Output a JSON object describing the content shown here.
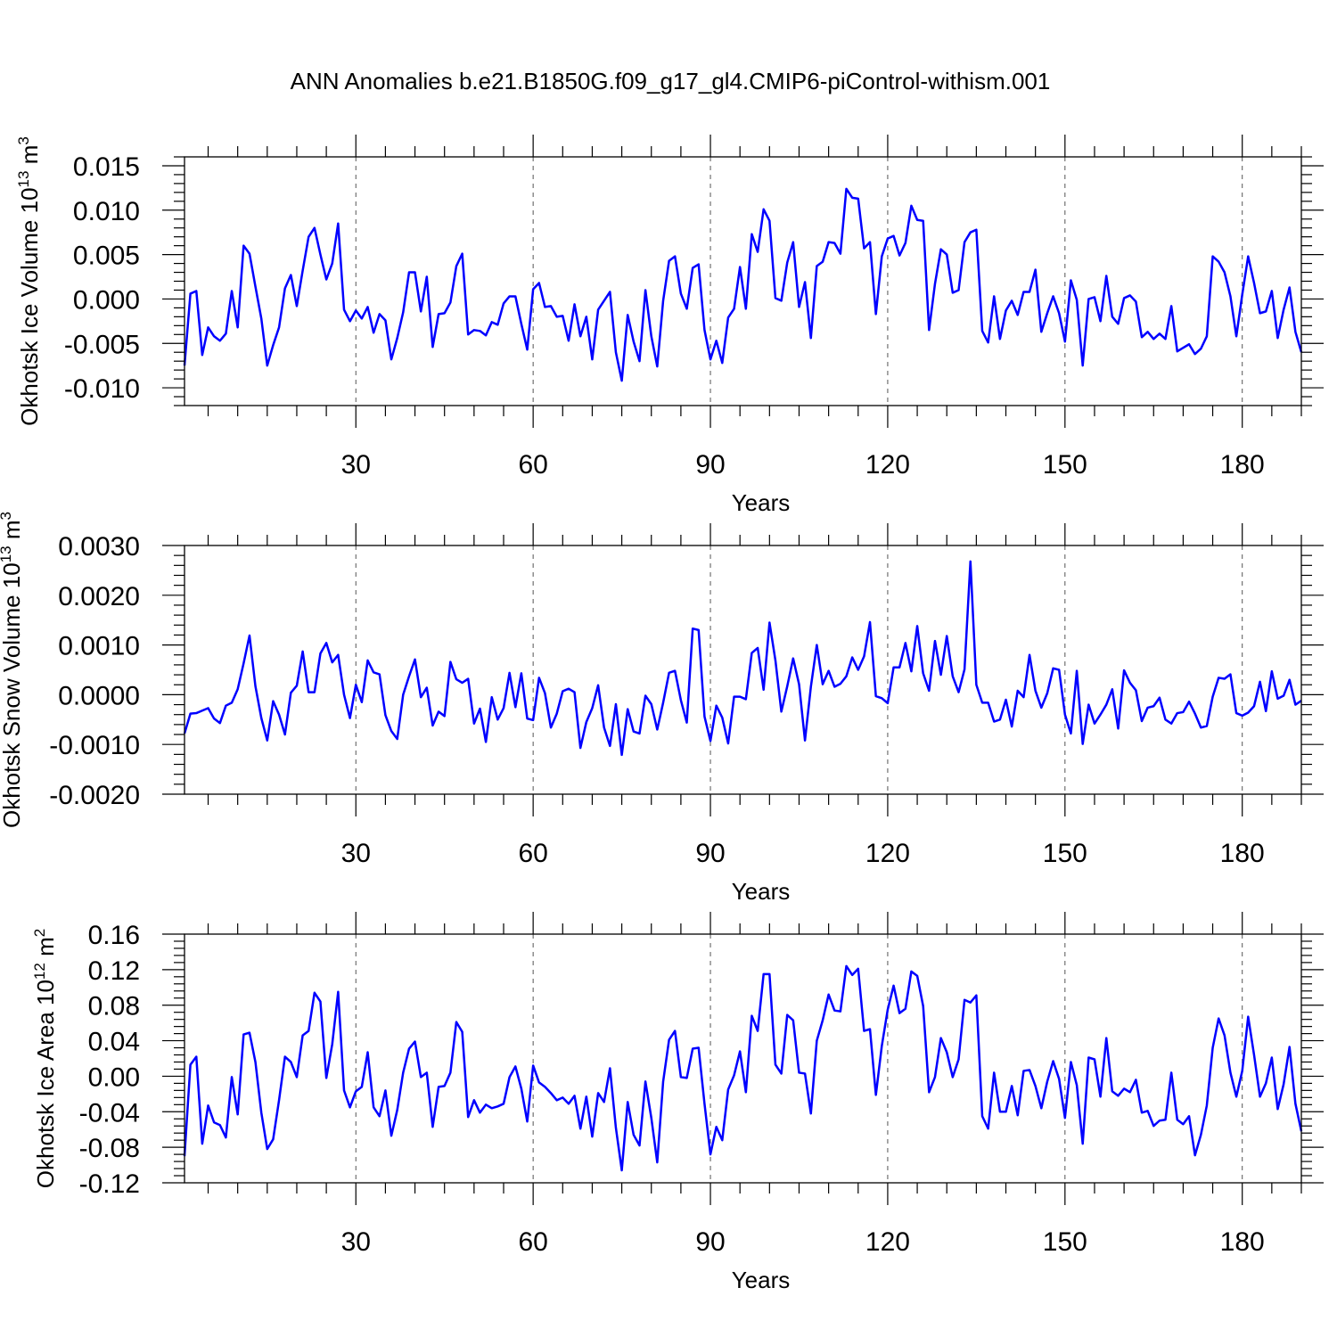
{
  "title": "ANN Anomalies b.e21.B1850G.f09_g17_gl4.CMIP6-piControl-withism.001",
  "chart_data": [
    {
      "type": "line",
      "id": "ice-volume",
      "ylabel_main": "Okhotsk Ice Volume 10",
      "ylabel_exp": "13",
      "ylabel_unit": " m",
      "ylabel_unit_exp": "3",
      "xlabel": "Years",
      "xlim": [
        1,
        190
      ],
      "ylim": [
        -0.012,
        0.016
      ],
      "xticks": [
        30,
        60,
        90,
        120,
        150,
        180
      ],
      "xtick_labels": [
        "30",
        "60",
        "90",
        "120",
        "150",
        "180"
      ],
      "yticks": [
        0.015,
        0.01,
        0.005,
        0.0,
        -0.005,
        -0.01
      ],
      "ytick_labels": [
        "0.015",
        "0.010",
        "0.005",
        "0.000",
        "-0.005",
        "-0.010"
      ],
      "line_color": "#0000ff",
      "series": [
        {
          "name": "Okhotsk Ice Volume",
          "values": [
            -0.0075,
            0.0006,
            0.0009,
            -0.0063,
            -0.0032,
            -0.0042,
            -0.0047,
            -0.0039,
            0.0009,
            -0.0032,
            0.006,
            0.0051,
            0.0014,
            -0.0022,
            -0.0075,
            -0.0052,
            -0.0032,
            0.0012,
            0.0027,
            -0.0008,
            0.0032,
            0.007,
            0.008,
            0.005,
            0.0022,
            0.004,
            0.0085,
            -0.0012,
            -0.0025,
            -0.0013,
            -0.0022,
            -0.0009,
            -0.0038,
            -0.0017,
            -0.0024,
            -0.0068,
            -0.0044,
            -0.0015,
            0.003,
            0.003,
            -0.0014,
            0.0025,
            -0.0054,
            -0.0017,
            -0.0016,
            -0.0004,
            0.0037,
            0.0051,
            -0.004,
            -0.0035,
            -0.0036,
            -0.0041,
            -0.0026,
            -0.0029,
            -0.0005,
            0.0003,
            0.0003,
            -0.0028,
            -0.0057,
            0.0011,
            0.0018,
            -0.0009,
            -0.0008,
            -0.002,
            -0.0019,
            -0.0047,
            -0.0006,
            -0.0042,
            -0.002,
            -0.0068,
            -0.0012,
            -0.0002,
            0.0008,
            -0.006,
            -0.0092,
            -0.0018,
            -0.0048,
            -0.007,
            0.001,
            -0.0042,
            -0.0076,
            -0.0002,
            0.0043,
            0.0048,
            0.0006,
            -0.0011,
            0.0035,
            0.0039,
            -0.0035,
            -0.0068,
            -0.0047,
            -0.0072,
            -0.0021,
            -0.0011,
            0.0036,
            -0.0011,
            0.0073,
            0.0053,
            0.0101,
            0.0088,
            0.0001,
            -0.0002,
            0.0041,
            0.0064,
            -0.0009,
            0.0019,
            -0.0044,
            0.0037,
            0.0042,
            0.0064,
            0.0063,
            0.0051,
            0.0124,
            0.0114,
            0.0113,
            0.0057,
            0.0064,
            -0.0017,
            0.0048,
            0.0068,
            0.0071,
            0.0049,
            0.0063,
            0.0105,
            0.0089,
            0.0088,
            -0.0035,
            0.0017,
            0.0056,
            0.005,
            0.0007,
            0.001,
            0.0064,
            0.0075,
            0.0078,
            -0.0036,
            -0.0049,
            0.0003,
            -0.0045,
            -0.0013,
            -0.0002,
            -0.0018,
            0.0008,
            0.0008,
            0.0033,
            -0.0037,
            -0.0016,
            0.0003,
            -0.0016,
            -0.0048,
            0.0021,
            -0.0001,
            -0.0075,
            0.0,
            0.0002,
            -0.0025,
            0.0026,
            -0.002,
            -0.0028,
            0.0001,
            0.0004,
            -0.0003,
            -0.0043,
            -0.0037,
            -0.0045,
            -0.0039,
            -0.0045,
            -0.0008,
            -0.0059,
            -0.0055,
            -0.0051,
            -0.0062,
            -0.0056,
            -0.0042,
            0.0048,
            0.0042,
            0.003,
            0.0003,
            -0.0042,
            0.0005,
            0.0048,
            0.0018,
            -0.0016,
            -0.0014,
            0.0009,
            -0.0044,
            -0.0012,
            0.0013,
            -0.0037,
            -0.006
          ]
        }
      ]
    },
    {
      "type": "line",
      "id": "snow-volume",
      "ylabel_main": "Okhotsk Snow Volume 10",
      "ylabel_exp": "13",
      "ylabel_unit": " m",
      "ylabel_unit_exp": "3",
      "xlabel": "Years",
      "xlim": [
        1,
        190
      ],
      "ylim": [
        -0.002,
        0.003
      ],
      "xticks": [
        30,
        60,
        90,
        120,
        150,
        180
      ],
      "xtick_labels": [
        "30",
        "60",
        "90",
        "120",
        "150",
        "180"
      ],
      "yticks": [
        0.003,
        0.002,
        0.001,
        0.0,
        -0.001,
        -0.002
      ],
      "ytick_labels": [
        "0.0030",
        "0.0020",
        "0.0010",
        "0.0000",
        "-0.0010",
        "-0.0020"
      ],
      "line_color": "#0000ff",
      "series": [
        {
          "name": "Okhotsk Snow Volume",
          "values": [
            -0.00078,
            -0.00038,
            -0.00037,
            -0.00032,
            -0.00027,
            -0.00048,
            -0.00057,
            -0.00022,
            -0.00016,
            0.00011,
            0.00063,
            0.00119,
            0.00017,
            -0.00047,
            -0.00092,
            -0.00013,
            -0.0004,
            -0.0008,
            4e-05,
            0.00018,
            0.00087,
            5e-05,
            5e-05,
            0.00083,
            0.00104,
            0.00065,
            0.0008,
            0.0,
            -0.00047,
            0.0002,
            -0.00015,
            0.00069,
            0.00045,
            0.00041,
            -0.00041,
            -0.00073,
            -0.00089,
            0.0,
            0.00037,
            0.00071,
            -5e-05,
            0.00014,
            -0.00062,
            -0.00034,
            -0.00043,
            0.00066,
            0.00031,
            0.00024,
            0.00032,
            -0.00058,
            -0.00028,
            -0.00095,
            -5e-05,
            -0.0005,
            -0.00027,
            0.00044,
            -0.00025,
            0.00043,
            -0.00048,
            -0.00051,
            0.00034,
            3e-05,
            -0.00066,
            -0.00038,
            7e-05,
            0.00012,
            5e-05,
            -0.00107,
            -0.00055,
            -0.00027,
            0.00019,
            -0.00066,
            -0.00103,
            -0.00019,
            -0.00121,
            -0.00029,
            -0.00074,
            -0.00078,
            -2e-05,
            -0.00019,
            -0.0007,
            -0.00016,
            0.00044,
            0.00048,
            -0.00011,
            -0.00056,
            0.00133,
            0.0013,
            -0.00044,
            -0.00093,
            -0.00022,
            -0.00046,
            -0.00098,
            -4e-05,
            -4e-05,
            -9e-05,
            0.00084,
            0.00094,
            0.0001,
            0.00145,
            0.00069,
            -0.00034,
            0.00017,
            0.00073,
            0.00021,
            -0.00092,
            0.00016,
            0.001,
            0.00021,
            0.00048,
            0.00016,
            0.00022,
            0.00037,
            0.00075,
            0.0005,
            0.00077,
            0.00146,
            -3e-05,
            -7e-05,
            -0.00017,
            0.00055,
            0.00055,
            0.00104,
            0.00047,
            0.00138,
            0.00043,
            8e-05,
            0.00108,
            0.0004,
            0.00118,
            0.00037,
            5e-05,
            0.00051,
            0.00268,
            0.0002,
            -0.00016,
            -0.00016,
            -0.00054,
            -0.0005,
            -0.0001,
            -0.00064,
            8e-05,
            -5e-05,
            0.0008,
            8e-05,
            -0.00026,
            3e-05,
            0.00053,
            0.0005,
            -0.0004,
            -0.00078,
            0.00048,
            -0.00099,
            -0.0002,
            -0.00058,
            -0.0004,
            -0.0002,
            0.00011,
            -0.00068,
            0.00049,
            0.00024,
            9e-05,
            -0.00053,
            -0.00026,
            -0.00023,
            -6e-05,
            -0.0005,
            -0.00058,
            -0.00037,
            -0.00035,
            -0.00014,
            -0.00038,
            -0.00066,
            -0.00063,
            -4e-05,
            0.00034,
            0.00032,
            0.00041,
            -0.00037,
            -0.00042,
            -0.00036,
            -0.00023,
            0.00026,
            -0.00033,
            0.00047,
            -8e-05,
            -2e-05,
            0.0003,
            -0.0002,
            -0.00012
          ]
        }
      ]
    },
    {
      "type": "line",
      "id": "ice-area",
      "ylabel_main": "Okhotsk Ice Area 10",
      "ylabel_exp": "12",
      "ylabel_unit": " m",
      "ylabel_unit_exp": "2",
      "xlabel": "Years",
      "xlim": [
        1,
        190
      ],
      "ylim": [
        -0.12,
        0.16
      ],
      "xticks": [
        30,
        60,
        90,
        120,
        150,
        180
      ],
      "xtick_labels": [
        "30",
        "60",
        "90",
        "120",
        "150",
        "180"
      ],
      "yticks": [
        0.16,
        0.12,
        0.08,
        0.04,
        0.0,
        -0.04,
        -0.08,
        -0.12
      ],
      "ytick_labels": [
        "0.16",
        "0.12",
        "0.08",
        "0.04",
        "0.00",
        "-0.04",
        "-0.08",
        "-0.12"
      ],
      "line_color": "#0000ff",
      "series": [
        {
          "name": "Okhotsk Ice Area",
          "values": [
            -0.09,
            0.013,
            0.022,
            -0.076,
            -0.033,
            -0.052,
            -0.055,
            -0.069,
            -0.001,
            -0.043,
            0.047,
            0.049,
            0.016,
            -0.041,
            -0.082,
            -0.071,
            -0.027,
            0.022,
            0.016,
            -0.001,
            0.046,
            0.051,
            0.094,
            0.084,
            -0.002,
            0.036,
            0.095,
            -0.016,
            -0.035,
            -0.017,
            -0.012,
            0.027,
            -0.035,
            -0.045,
            -0.016,
            -0.067,
            -0.038,
            0.004,
            0.031,
            0.039,
            -0.001,
            0.004,
            -0.057,
            -0.012,
            -0.011,
            0.004,
            0.061,
            0.05,
            -0.046,
            -0.027,
            -0.041,
            -0.032,
            -0.036,
            -0.034,
            -0.031,
            -0.001,
            0.011,
            -0.014,
            -0.051,
            0.012,
            -0.007,
            -0.012,
            -0.019,
            -0.027,
            -0.024,
            -0.031,
            -0.022,
            -0.059,
            -0.023,
            -0.068,
            -0.019,
            -0.029,
            0.009,
            -0.058,
            -0.106,
            -0.029,
            -0.066,
            -0.078,
            -0.006,
            -0.047,
            -0.097,
            -0.006,
            0.041,
            0.051,
            -0.001,
            -0.002,
            0.031,
            0.032,
            -0.031,
            -0.088,
            -0.057,
            -0.072,
            -0.015,
            0.001,
            0.028,
            -0.018,
            0.068,
            0.051,
            0.115,
            0.115,
            0.013,
            0.003,
            0.069,
            0.063,
            0.004,
            0.003,
            -0.042,
            0.04,
            0.063,
            0.092,
            0.074,
            0.073,
            0.124,
            0.114,
            0.121,
            0.051,
            0.053,
            -0.021,
            0.034,
            0.075,
            0.102,
            0.071,
            0.076,
            0.118,
            0.113,
            0.079,
            -0.018,
            -0.001,
            0.043,
            0.027,
            -0.001,
            0.019,
            0.086,
            0.083,
            0.091,
            -0.045,
            -0.059,
            0.004,
            -0.04,
            -0.04,
            -0.011,
            -0.044,
            0.006,
            0.007,
            -0.011,
            -0.036,
            -0.006,
            0.017,
            -0.003,
            -0.047,
            0.016,
            -0.01,
            -0.076,
            0.021,
            0.019,
            -0.023,
            0.043,
            -0.017,
            -0.022,
            -0.014,
            -0.018,
            -0.004,
            -0.041,
            -0.039,
            -0.056,
            -0.05,
            -0.049,
            0.004,
            -0.049,
            -0.054,
            -0.045,
            -0.089,
            -0.066,
            -0.033,
            0.032,
            0.065,
            0.046,
            0.004,
            -0.023,
            0.006,
            0.067,
            0.024,
            -0.023,
            -0.008,
            0.021,
            -0.037,
            -0.009,
            0.033,
            -0.031,
            -0.062
          ]
        }
      ]
    }
  ]
}
